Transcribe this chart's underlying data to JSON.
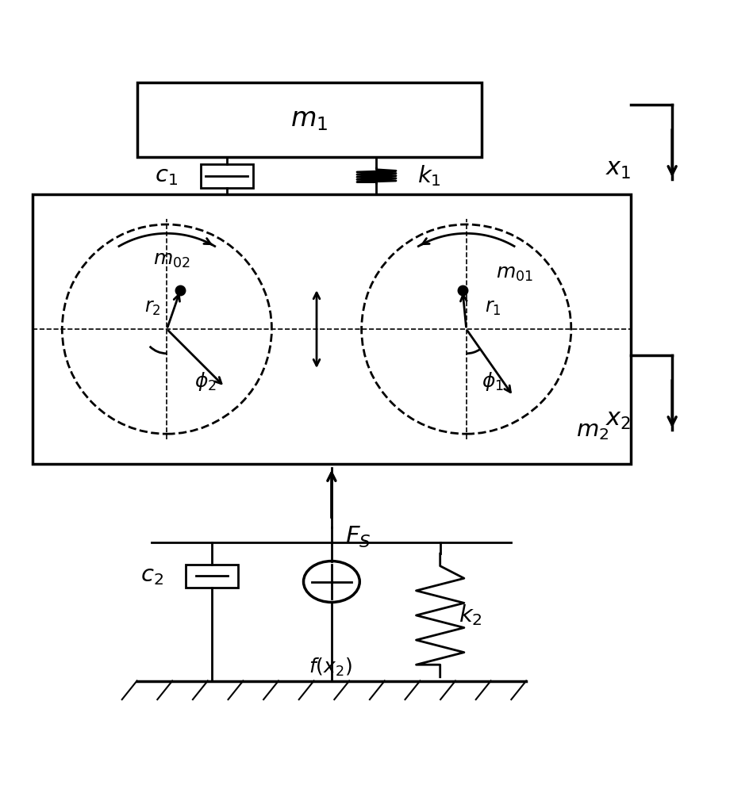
{
  "bg_color": "#ffffff",
  "line_color": "#000000",
  "fig_width": 9.49,
  "fig_height": 10.0,
  "m1_label": "$m_1$",
  "m2_label": "$m_2$",
  "c1_label": "$c_1$",
  "k1_label": "$k_1$",
  "c2_label": "$c_2$",
  "k2_label": "$k_2$",
  "x1_label": "$x_1$",
  "x2_label": "$x_2$",
  "Fs_label": "$F_S$",
  "fx2_label": "$f(x_2)$",
  "phi1_label": "$\\phi_1$",
  "phi2_label": "$\\phi_2$",
  "r1_label": "$r_1$",
  "r2_label": "$r_2$",
  "m01_label": "$m_{01}$",
  "m02_label": "$m_{02}$"
}
